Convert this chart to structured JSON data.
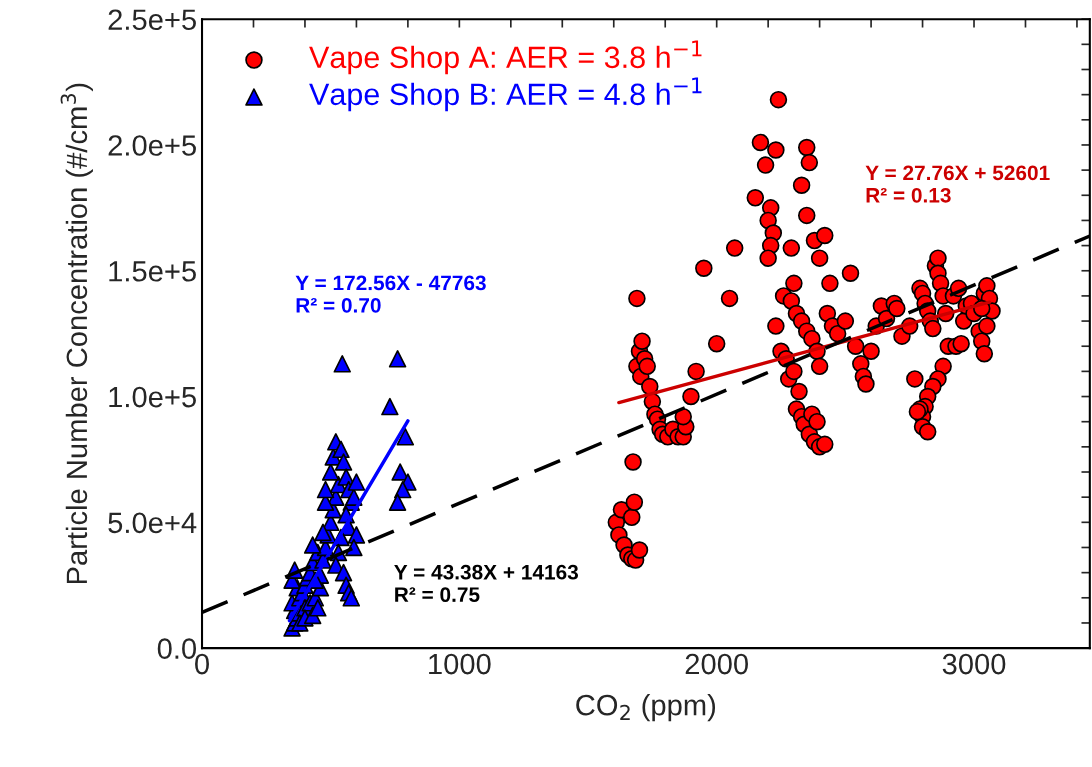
{
  "chart_data": {
    "type": "scatter",
    "xlabel": "CO$_{2}$ (ppm)",
    "ylabel": "Particle Number Concentration (#/cm$^{3}$)",
    "xlim": [
      0,
      3450
    ],
    "ylim": [
      0,
      250000
    ],
    "xticks": [
      0,
      {
        "value": 200,
        "label": null
      },
      {
        "value": 400,
        "label": null
      },
      {
        "value": 600,
        "label": null
      },
      {
        "value": 800,
        "label": null
      },
      1000,
      {
        "value": 1200,
        "label": null
      },
      {
        "value": 1400,
        "label": null
      },
      {
        "value": 1600,
        "label": null
      },
      {
        "value": 1800,
        "label": null
      },
      2000,
      {
        "value": 2200,
        "label": null
      },
      {
        "value": 2400,
        "label": null
      },
      {
        "value": 2600,
        "label": null
      },
      {
        "value": 2800,
        "label": null
      },
      3000,
      {
        "value": 3200,
        "label": null
      },
      {
        "value": 3400,
        "label": null
      }
    ],
    "yticks": [
      {
        "value": 0,
        "label": "0.0"
      },
      {
        "value": 10000,
        "label": null
      },
      {
        "value": 20000,
        "label": null
      },
      {
        "value": 30000,
        "label": null
      },
      {
        "value": 40000,
        "label": null
      },
      {
        "value": 50000,
        "label": "5.0e+4"
      },
      {
        "value": 60000,
        "label": null
      },
      {
        "value": 70000,
        "label": null
      },
      {
        "value": 80000,
        "label": null
      },
      {
        "value": 90000,
        "label": null
      },
      {
        "value": 100000,
        "label": "1.0e+5"
      },
      {
        "value": 110000,
        "label": null
      },
      {
        "value": 120000,
        "label": null
      },
      {
        "value": 130000,
        "label": null
      },
      {
        "value": 140000,
        "label": null
      },
      {
        "value": 150000,
        "label": "1.5e+5"
      },
      {
        "value": 160000,
        "label": null
      },
      {
        "value": 170000,
        "label": null
      },
      {
        "value": 180000,
        "label": null
      },
      {
        "value": 190000,
        "label": null
      },
      {
        "value": 200000,
        "label": "2.0e+5"
      },
      {
        "value": 210000,
        "label": null
      },
      {
        "value": 220000,
        "label": null
      },
      {
        "value": 230000,
        "label": null
      },
      {
        "value": 240000,
        "label": null
      },
      {
        "value": 250000,
        "label": "2.5e+5"
      }
    ],
    "grid": false,
    "legend": "top left",
    "series": [
      {
        "name": "Vape Shop A: AER = 3.8 h$^{−1}$",
        "marker": "circle",
        "color": "#ff0000",
        "x": [
          1610,
          1630,
          1620,
          1640,
          1655,
          1670,
          1685,
          1700,
          1670,
          1680,
          1675,
          1690,
          1690,
          1700,
          1710,
          1720,
          1705,
          1730,
          1740,
          1750,
          1760,
          1770,
          1780,
          1790,
          1810,
          1830,
          1850,
          1870,
          1880,
          1870,
          1900,
          1920,
          1950,
          2000,
          2050,
          2070,
          2150,
          2170,
          2190,
          2210,
          2200,
          2230,
          2220,
          2210,
          2200,
          2240,
          2260,
          2230,
          2250,
          2270,
          2280,
          2300,
          2320,
          2310,
          2330,
          2340,
          2360,
          2380,
          2400,
          2420,
          2350,
          2360,
          2330,
          2350,
          2380,
          2400,
          2420,
          2440,
          2290,
          2300,
          2290,
          2310,
          2330,
          2350,
          2370,
          2390,
          2400,
          2370,
          2390,
          2430,
          2450,
          2470,
          2500,
          2520,
          2540,
          2560,
          2570,
          2580,
          2600,
          2620,
          2640,
          2660,
          2690,
          2700,
          2720,
          2750,
          2770,
          2790,
          2800,
          2810,
          2820,
          2830,
          2840,
          2850,
          2860,
          2860,
          2870,
          2880,
          2890,
          2900,
          2880,
          2860,
          2840,
          2820,
          2810,
          2800,
          2800,
          2820,
          2790,
          2780,
          2930,
          2950,
          2960,
          2970,
          2990,
          3000,
          3020,
          3030,
          3040,
          3040,
          3050,
          3060,
          3070,
          3050,
          3030,
          2920,
          2940
        ],
        "values": [
          50000,
          55000,
          45000,
          41000,
          37000,
          35500,
          35000,
          39000,
          52000,
          58000,
          74000,
          139000,
          112000,
          118000,
          122000,
          115000,
          108000,
          112000,
          104000,
          98000,
          93000,
          91000,
          87000,
          85000,
          84000,
          87000,
          84000,
          84000,
          88000,
          92000,
          100000,
          110000,
          151000,
          121000,
          139000,
          159000,
          179000,
          201000,
          192000,
          175000,
          170000,
          198000,
          165000,
          160000,
          155000,
          218000,
          140000,
          128000,
          118000,
          115000,
          107000,
          110000,
          102000,
          95000,
          92000,
          89000,
          85000,
          82000,
          80000,
          81000,
          199000,
          193000,
          184000,
          172000,
          162000,
          155000,
          164000,
          145000,
          159000,
          145000,
          138000,
          133000,
          130000,
          126000,
          123000,
          118000,
          112000,
          93000,
          90000,
          133000,
          128000,
          125000,
          130000,
          149000,
          120000,
          113000,
          108000,
          105000,
          118000,
          128000,
          136000,
          131000,
          137000,
          135000,
          124000,
          128000,
          107000,
          143000,
          141000,
          137000,
          134000,
          130000,
          127000,
          152000,
          155000,
          149000,
          145000,
          140000,
          133000,
          120000,
          112000,
          107000,
          104000,
          100000,
          96000,
          92000,
          88000,
          86000,
          95000,
          94000,
          120000,
          121000,
          130000,
          136000,
          137000,
          133000,
          126000,
          122000,
          117000,
          141000,
          144000,
          139000,
          134000,
          128000,
          135000,
          140000,
          143000
        ]
      },
      {
        "name": "Vape Shop B: AER = 4.8 h$^{−1}$",
        "marker": "triangle",
        "color": "#0000ff",
        "x": [
          350,
          360,
          370,
          360,
          350,
          380,
          370,
          350,
          360,
          390,
          400,
          410,
          420,
          380,
          400,
          420,
          440,
          460,
          430,
          450,
          470,
          480,
          490,
          500,
          510,
          520,
          530,
          500,
          510,
          520,
          540,
          550,
          560,
          570,
          580,
          590,
          600,
          560,
          570,
          540,
          530,
          520,
          550,
          560,
          570,
          580,
          470,
          430,
          460,
          545,
          760,
          730,
          790,
          770,
          800,
          780,
          760,
          600,
          590,
          480,
          480,
          440,
          380,
          400,
          430,
          450
        ],
        "values": [
          8000,
          10000,
          12000,
          15000,
          18000,
          20000,
          24000,
          27000,
          31000,
          22000,
          25000,
          28000,
          30000,
          14000,
          16000,
          18000,
          20000,
          24000,
          34000,
          38000,
          35000,
          40000,
          45000,
          50000,
          55000,
          60000,
          65000,
          70000,
          76000,
          82000,
          79000,
          74000,
          68000,
          63000,
          58000,
          60000,
          66000,
          53000,
          48000,
          44000,
          38000,
          33000,
          30000,
          25000,
          22000,
          20000,
          46000,
          41000,
          29000,
          113000,
          115000,
          96000,
          84000,
          70000,
          66000,
          63000,
          58000,
          45000,
          40000,
          58000,
          63000,
          27000,
          10000,
          12000,
          13000,
          16000
        ]
      },
      {
        "type": "line",
        "color": "#0000ff",
        "line_style": "solid",
        "x": [
          340,
          800
        ],
        "values": [
          10900,
          90300
        ]
      },
      {
        "type": "line",
        "color": "#cc0000",
        "line_style": "solid",
        "x": [
          1620,
          3060
        ],
        "values": [
          97600,
          137500
        ]
      },
      {
        "type": "line",
        "color": "#000000",
        "line_style": "dashed",
        "x": [
          0,
          3450
        ],
        "values": [
          14200,
          163800
        ]
      }
    ],
    "annotations": [
      "Y = 172.56X - 47763\nR² = 0.70",
      "Y = 27.76X + 52601\nR² = 0.13",
      "Y = 43.38X + 14163\nR² = 0.75"
    ]
  }
}
